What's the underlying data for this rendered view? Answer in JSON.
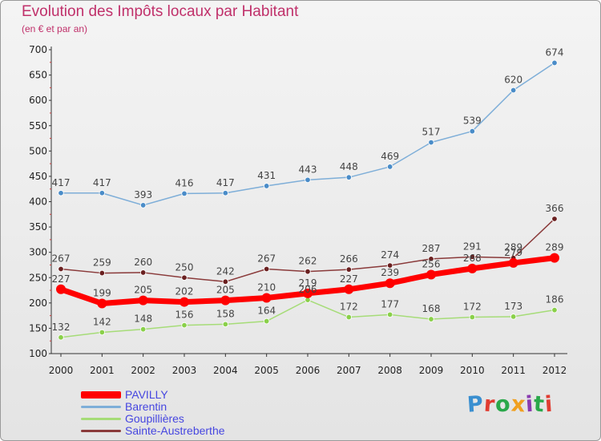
{
  "header": {
    "title": "Evolution des Impôts locaux par Habitant",
    "subtitle": "(en € et par an)"
  },
  "logo": {
    "text": "Proxiti",
    "colors": [
      "#3a8fd0",
      "#e03c31",
      "#2aa84a",
      "#f0a020",
      "#8a3bb0",
      "#2aa84a",
      "#e03c31"
    ]
  },
  "colors": {
    "title": "#c0306a",
    "legend_text": "#4646e0",
    "axis": "#333333"
  },
  "chart_data": {
    "type": "line",
    "title": "Evolution des Impôts locaux par Habitant",
    "subtitle": "(en € et par an)",
    "xlabel": "",
    "ylabel": "",
    "x": [
      "2000",
      "2001",
      "2002",
      "2003",
      "2004",
      "2005",
      "2006",
      "2007",
      "2008",
      "2009",
      "2010",
      "2011",
      "2012"
    ],
    "y_ticks": [
      100,
      150,
      200,
      250,
      300,
      350,
      400,
      450,
      500,
      550,
      600,
      650,
      700
    ],
    "ylim": [
      100,
      700
    ],
    "grid": false,
    "legend_position": "bottom-left",
    "series": [
      {
        "name": "PAVILLY",
        "color": "#ff0000",
        "marker": "#ff0000",
        "width": 7,
        "label_color": "#444444",
        "values": [
          227,
          199,
          205,
          202,
          205,
          210,
          219,
          227,
          239,
          256,
          268,
          279,
          289
        ]
      },
      {
        "name": "Barentin",
        "color": "#7eaed8",
        "marker": "#4a8cc8",
        "width": 1.5,
        "label_color": "#444444",
        "values": [
          417,
          417,
          393,
          416,
          417,
          431,
          443,
          448,
          469,
          517,
          539,
          620,
          674
        ]
      },
      {
        "name": "Goupillières",
        "color": "#a6dc78",
        "marker": "#8ad04a",
        "width": 1.5,
        "label_color": "#444444",
        "values": [
          132,
          142,
          148,
          156,
          158,
          164,
          206,
          172,
          177,
          168,
          172,
          173,
          186
        ]
      },
      {
        "name": "Sainte-Austreberthe",
        "color": "#8a3a3a",
        "marker": "#6a2020",
        "width": 1.5,
        "label_color": "#444444",
        "values": [
          267,
          259,
          260,
          250,
          242,
          267,
          262,
          266,
          274,
          287,
          291,
          289,
          366
        ]
      }
    ]
  }
}
